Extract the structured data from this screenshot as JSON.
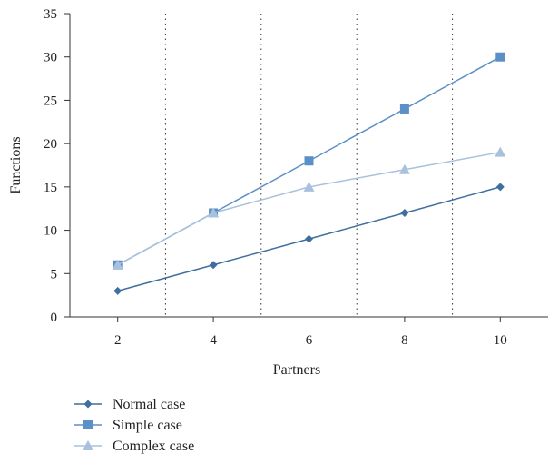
{
  "chart_data": {
    "type": "line",
    "title": "",
    "xlabel": "Partners",
    "ylabel": "Functions",
    "x": [
      2,
      4,
      6,
      8,
      10
    ],
    "xticks": [
      2,
      4,
      6,
      8,
      10
    ],
    "yticks": [
      0,
      5,
      10,
      15,
      20,
      25,
      30,
      35
    ],
    "xlim": [
      1,
      11
    ],
    "ylim": [
      0,
      35
    ],
    "vertical_dotted_gridlines_at": [
      3,
      5,
      7,
      9
    ],
    "legend_placement": "bottom-left below chart",
    "series": [
      {
        "name": "Normal case",
        "values": [
          3,
          6,
          9,
          12,
          15
        ],
        "color": "#3f6f9e",
        "marker": "diamond"
      },
      {
        "name": "Simple case",
        "values": [
          6,
          12,
          18,
          24,
          30
        ],
        "color": "#5b8fc7",
        "marker": "square"
      },
      {
        "name": "Complex case",
        "values": [
          6,
          12,
          15,
          17,
          19
        ],
        "color": "#a9c1dc",
        "marker": "triangle"
      }
    ]
  }
}
